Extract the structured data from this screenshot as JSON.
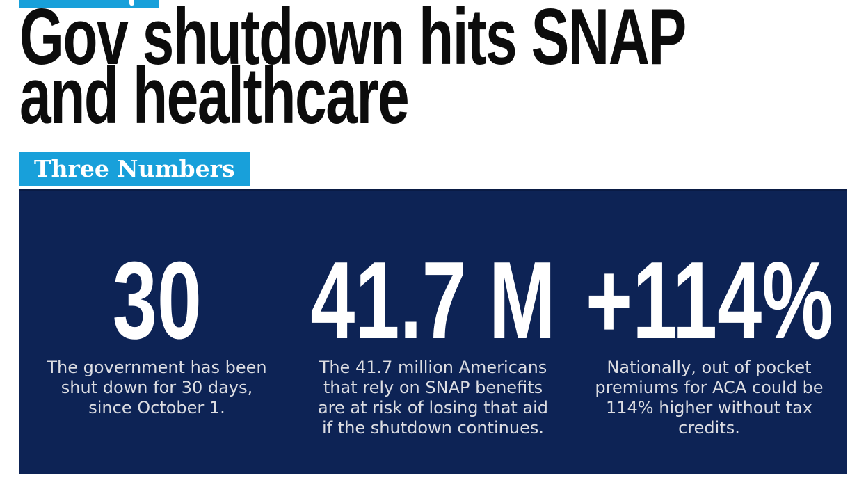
{
  "header": {
    "headline": "Gov shutdown hits SNAP and healthcare",
    "section_label": "Three Numbers"
  },
  "stats": [
    {
      "value": "30",
      "description": "The government has been shut down for 30 days, since October 1."
    },
    {
      "value": "41.7 M",
      "description": "The 41.7 million Americans that rely on SNAP benefits are at risk of losing that aid if the shutdown continues."
    },
    {
      "value": "+114%",
      "description": "Nationally, out of pocket premiums for ACA could be 114% higher without tax credits."
    }
  ],
  "colors": {
    "accent_cyan": "#18a0da",
    "panel_navy": "#0d2355",
    "headline_black": "#0c0c0c",
    "description_text": "#dcdde2",
    "number_white": "#ffffff"
  },
  "chart_data": {
    "type": "table",
    "title": "Gov shutdown hits SNAP and healthcare",
    "subtitle": "Three Numbers",
    "columns": [
      "value",
      "description"
    ],
    "rows": [
      [
        "30",
        "The government has been shut down for 30 days, since October 1."
      ],
      [
        "41.7 M",
        "The 41.7 million Americans that rely on SNAP benefits are at risk of losing that aid if the shutdown continues."
      ],
      [
        "+114%",
        "Nationally, out of pocket premiums for ACA could be 114% higher without tax credits."
      ]
    ],
    "values": [
      {
        "label": "30",
        "numeric": 30,
        "unit": "days"
      },
      {
        "label": "41.7 M",
        "numeric": 41700000,
        "unit": "people"
      },
      {
        "label": "+114%",
        "numeric": 114,
        "unit": "percent"
      }
    ]
  }
}
